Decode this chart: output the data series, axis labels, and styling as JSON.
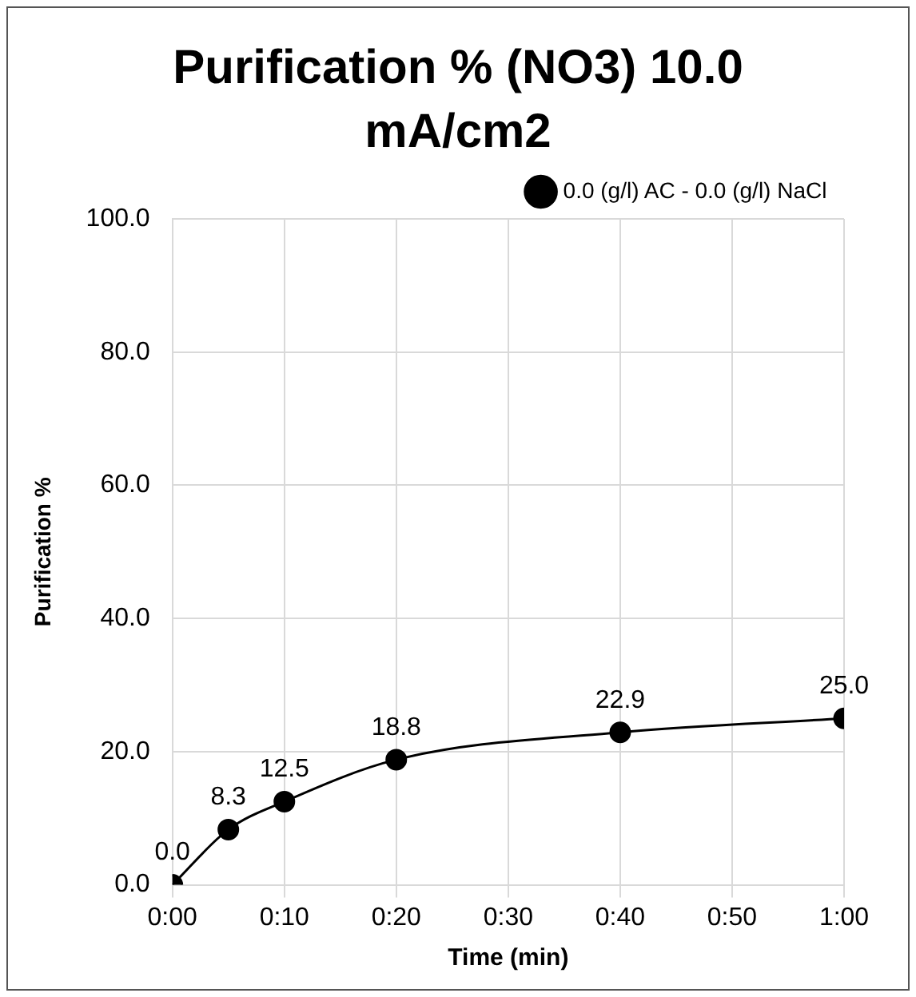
{
  "chart_data": {
    "type": "line",
    "title": "Purification % (NO3) 10.0 mA/cm2",
    "xlabel": "Time (min)",
    "ylabel": "Purification %",
    "x": [
      0,
      0.0833,
      0.1667,
      0.3333,
      0.6667,
      1
    ],
    "series": [
      {
        "name": "0.0 (g/l) AC - 0.0 (g/l) NaCl",
        "color": "#000000",
        "values": [
          0,
          8.3,
          12.5,
          18.8,
          22.9,
          25.0
        ],
        "value_labels": [
          "0.0",
          "8.3",
          "12.5",
          "18.8",
          "22.9",
          "25.0"
        ]
      }
    ],
    "xlim": [
      0,
      1
    ],
    "xticks": [
      {
        "value": 0,
        "label": "0:00"
      },
      {
        "value": 0.1667,
        "label": "0:10"
      },
      {
        "value": 0.3333,
        "label": "0:20"
      },
      {
        "value": 0.5,
        "label": "0:30"
      },
      {
        "value": 0.6667,
        "label": "0:40"
      },
      {
        "value": 0.8333,
        "label": "0:50"
      },
      {
        "value": 1,
        "label": "1:00"
      }
    ],
    "ylim": [
      0,
      100
    ],
    "yticks": [
      {
        "value": 0,
        "label": "0.0"
      },
      {
        "value": 20,
        "label": "20.0"
      },
      {
        "value": 40,
        "label": "40.0"
      },
      {
        "value": 60,
        "label": "60.0"
      },
      {
        "value": 80,
        "label": "80.0"
      },
      {
        "value": 100,
        "label": "100.0"
      }
    ],
    "grid": true,
    "legend": "top right",
    "marker": "circle",
    "line_style": "solid"
  }
}
